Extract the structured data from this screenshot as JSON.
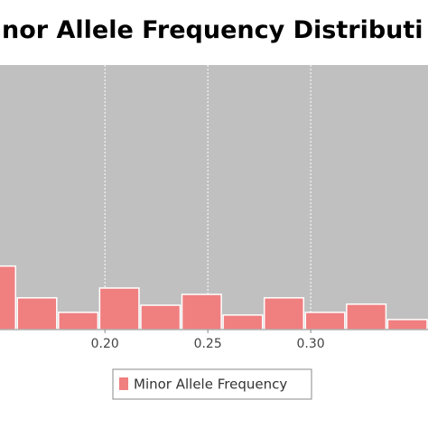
{
  "chart_data": {
    "type": "histogram",
    "title": "nor Allele Frequency Distributi",
    "bins": [
      0.137,
      0.157,
      0.177,
      0.197,
      0.217,
      0.237,
      0.257,
      0.277,
      0.297,
      0.317,
      0.337,
      0.357
    ],
    "values": [
      24,
      12,
      6.5,
      15.7,
      9.2,
      13.3,
      5.5,
      12,
      6.5,
      9.6,
      3.8
    ],
    "series_name": "Minor Allele Frequency",
    "color": "#f07f80",
    "xlim": [
      0.149,
      0.357
    ],
    "ylim": [
      0,
      100
    ],
    "xticks": [
      {
        "value": 0.2,
        "label": "0.20"
      },
      {
        "value": 0.25,
        "label": "0.25"
      },
      {
        "value": 0.3,
        "label": "0.30"
      }
    ],
    "grid": true
  }
}
